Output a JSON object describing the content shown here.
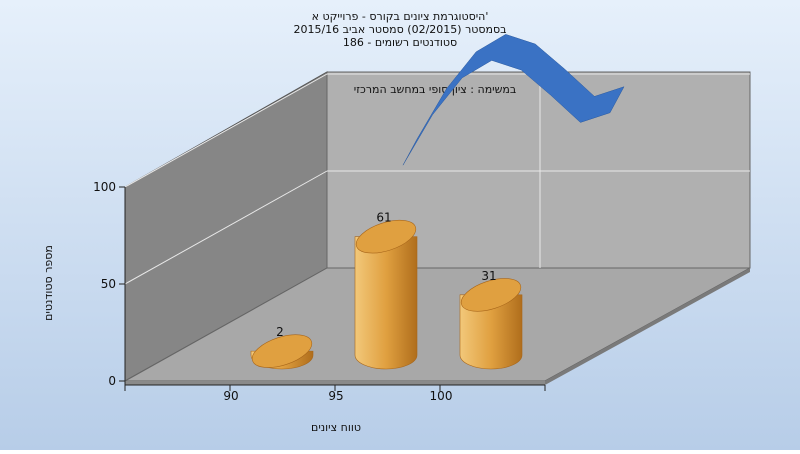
{
  "colors": {
    "background_top": "#e6f0fb",
    "background_bottom": "#b7cde8",
    "bar_light": "#f2c87a",
    "bar_mid": "#e0a040",
    "bar_dark": "#b06e1c",
    "curve": "#3a72c4"
  },
  "chart_data": {
    "type": "bar",
    "title_lines": [
      "היסטוגרמת ציונים בקורס - פרוייקט א'",
      "בסמסטר  (02/2015)  סמסטר אביב 2015/16",
      "סטודנטים רשומים - 186"
    ],
    "annotation": "במשימה : ציון סופי במחשב המרכזי",
    "xlabel": "טווח ציונים",
    "ylabel": "מספר סטודנטים",
    "categories": [
      "90",
      "95",
      "100"
    ],
    "values": [
      2,
      61,
      31
    ],
    "data_labels": [
      "2",
      "61",
      "31"
    ],
    "y_ticks": [
      "0",
      "50",
      "100"
    ],
    "ylim": [
      0,
      100
    ],
    "overlay_series": {
      "type": "area-line",
      "x": [
        95,
        96,
        97,
        98,
        99,
        100,
        101,
        102
      ],
      "y": [
        52,
        78,
        97,
        106,
        101,
        88,
        74,
        79
      ]
    },
    "grid": true,
    "projection": "3d"
  }
}
